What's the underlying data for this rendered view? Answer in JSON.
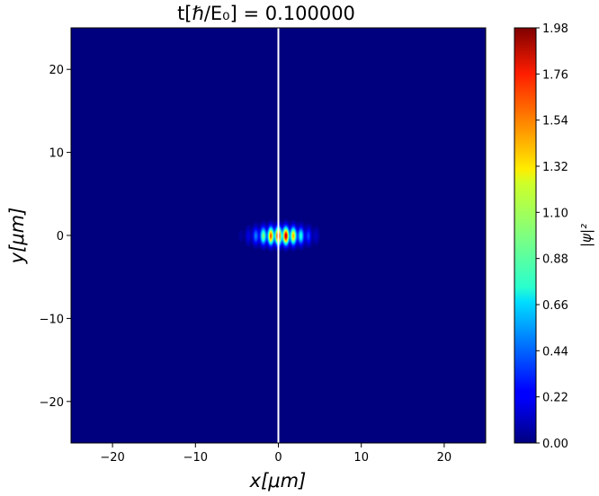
{
  "chart_data": {
    "type": "heatmap",
    "title": "t[ℏ/E₀] =  0.100000",
    "xlabel": "x[μm]",
    "ylabel": "y[μm]",
    "colorbar_label": "|ψ|²",
    "colormap": "jet",
    "xlim": [
      -25,
      25
    ],
    "ylim": [
      -25,
      25
    ],
    "xticks": [
      -20,
      -10,
      0,
      10,
      20
    ],
    "xtick_labels": [
      "−20",
      "−10",
      "0",
      "10",
      "20"
    ],
    "yticks": [
      -20,
      -10,
      0,
      10,
      20
    ],
    "ytick_labels": [
      "−20",
      "−10",
      "0",
      "10",
      "20"
    ],
    "clim": [
      0.0,
      1.98
    ],
    "colorbar_ticks": [
      0.0,
      0.22,
      0.44,
      0.66,
      0.88,
      1.1,
      1.32,
      1.54,
      1.76,
      1.98
    ],
    "colorbar_tick_labels": [
      "0.00",
      "0.22",
      "0.44",
      "0.66",
      "0.88",
      "1.10",
      "1.32",
      "1.54",
      "1.76",
      "1.98"
    ],
    "vertical_line_x": 0.0,
    "vertical_line_color": "#ffffff",
    "background_value": 0.0,
    "wavepacket": {
      "center": [
        0.3,
        0.0
      ],
      "peak_value": 1.98,
      "x_extent": [
        -8.5,
        8.5
      ],
      "y_extent": [
        -2.5,
        2.5
      ]
    }
  }
}
